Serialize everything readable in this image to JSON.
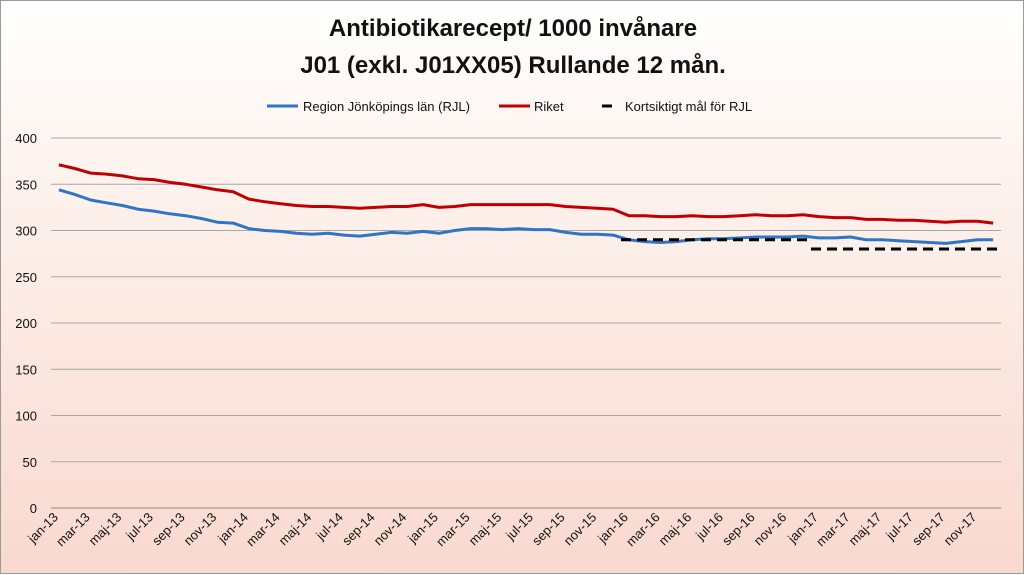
{
  "chart_data": {
    "type": "line",
    "title": "Antibiotikarecept/ 1000 invånare",
    "subtitle": "J01 (exkl. J01XX05) Rullande 12 mån.",
    "xlabel": "",
    "ylabel": "",
    "ylim": [
      0,
      400
    ],
    "yticks": [
      0,
      50,
      100,
      150,
      200,
      250,
      300,
      350,
      400
    ],
    "grid": true,
    "legend_position": "top",
    "x": [
      "jan-13",
      "feb-13",
      "mar-13",
      "apr-13",
      "maj-13",
      "jun-13",
      "jul-13",
      "aug-13",
      "sep-13",
      "okt-13",
      "nov-13",
      "dec-13",
      "jan-14",
      "feb-14",
      "mar-14",
      "apr-14",
      "maj-14",
      "jun-14",
      "jul-14",
      "aug-14",
      "sep-14",
      "okt-14",
      "nov-14",
      "dec-14",
      "jan-15",
      "feb-15",
      "mar-15",
      "apr-15",
      "maj-15",
      "jun-15",
      "jul-15",
      "aug-15",
      "sep-15",
      "okt-15",
      "nov-15",
      "dec-15",
      "jan-16",
      "feb-16",
      "mar-16",
      "apr-16",
      "maj-16",
      "jun-16",
      "jul-16",
      "aug-16",
      "sep-16",
      "okt-16",
      "nov-16",
      "dec-16",
      "jan-17",
      "feb-17",
      "mar-17",
      "apr-17",
      "maj-17",
      "jun-17",
      "jul-17",
      "aug-17",
      "sep-17",
      "okt-17",
      "nov-17",
      "dec-17"
    ],
    "xtick_labels": [
      "jan-13",
      "mar-13",
      "maj-13",
      "jul-13",
      "sep-13",
      "nov-13",
      "jan-14",
      "mar-14",
      "maj-14",
      "jul-14",
      "sep-14",
      "nov-14",
      "jan-15",
      "mar-15",
      "maj-15",
      "jul-15",
      "sep-15",
      "nov-15",
      "jan-16",
      "mar-16",
      "maj-16",
      "jul-16",
      "sep-16",
      "nov-16",
      "jan-17",
      "mar-17",
      "maj-17",
      "jul-17",
      "sep-17",
      "nov-17"
    ],
    "series": [
      {
        "name": "Region Jönköpings län (RJL)",
        "color": "#2e75c6",
        "style": "solid",
        "x_start": "jan-13",
        "values": [
          344,
          339,
          333,
          330,
          327,
          323,
          321,
          318,
          316,
          313,
          309,
          308,
          302,
          300,
          299,
          297,
          296,
          297,
          295,
          294,
          296,
          298,
          297,
          299,
          297,
          300,
          302,
          302,
          301,
          302,
          301,
          301,
          298,
          296,
          296,
          295,
          290,
          288,
          287,
          288,
          290,
          291,
          291,
          292,
          293,
          293,
          293,
          294,
          292,
          292,
          293,
          290,
          290,
          289,
          288,
          287,
          286,
          288,
          290,
          290
        ]
      },
      {
        "name": "Riket",
        "color": "#c00000",
        "style": "solid",
        "x_start": "jan-13",
        "values": [
          371,
          367,
          362,
          361,
          359,
          356,
          355,
          352,
          350,
          347,
          344,
          342,
          334,
          331,
          329,
          327,
          326,
          326,
          325,
          324,
          325,
          326,
          326,
          328,
          325,
          326,
          328,
          328,
          328,
          328,
          328,
          328,
          326,
          325,
          324,
          323,
          316,
          316,
          315,
          315,
          316,
          315,
          315,
          316,
          317,
          316,
          316,
          317,
          315,
          314,
          314,
          312,
          312,
          311,
          311,
          310,
          309,
          310,
          310,
          308
        ]
      },
      {
        "name": "Kortsiktigt mål för RJL",
        "color": "#000000",
        "style": "dashed",
        "segments": [
          {
            "from": "jan-16",
            "to": "dec-16",
            "value": 290
          },
          {
            "from": "jan-17",
            "to": "dec-17",
            "value": 280
          }
        ]
      }
    ]
  }
}
